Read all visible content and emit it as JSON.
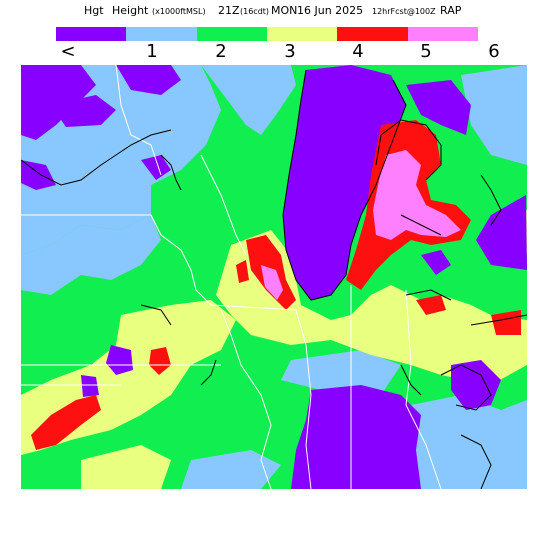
{
  "header": {
    "field": "Hgt",
    "name": "Height",
    "units": "(x1000ftMSL)",
    "valid_hour": "21Z",
    "local_time": "(16cdt)",
    "day": "MON",
    "date": "16 Jun 2025",
    "forecast": "12hrFcst@100Z",
    "model": "RAP"
  },
  "legend": {
    "bins": [
      {
        "color": "#8800ff"
      },
      {
        "color": "#88c8ff"
      },
      {
        "color": "#10ee50"
      },
      {
        "color": "#e8ff80"
      },
      {
        "color": "#ff1010"
      },
      {
        "color": "#ff80ff"
      }
    ],
    "labels": [
      "<",
      "1",
      "2",
      "3",
      "4",
      "5",
      "6"
    ]
  },
  "map": {
    "background_color": "#10ee50",
    "boundary_color": "#000000",
    "state_line_color": "#ffffff"
  }
}
